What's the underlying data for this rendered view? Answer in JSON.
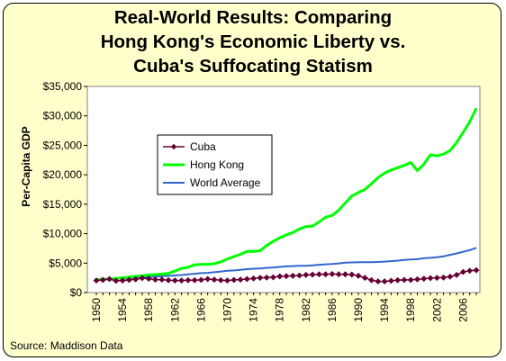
{
  "title_lines": [
    "Real-World Results: Comparing",
    "Hong Kong's Economic Liberty vs.",
    "Cuba's Suffocating Statism"
  ],
  "source": "Source: Maddison Data",
  "chart_data": {
    "type": "line",
    "ylabel": "Per-Capita GDP",
    "xlabel": "",
    "ylim": [
      0,
      35000
    ],
    "y_ticks": [
      0,
      5000,
      10000,
      15000,
      20000,
      25000,
      30000,
      35000
    ],
    "y_tick_labels": [
      "$0",
      "$5,000",
      "$10,000",
      "$15,000",
      "$20,000",
      "$25,000",
      "$30,000",
      "$35,000"
    ],
    "x_tick_labels": [
      "1950",
      "1954",
      "1958",
      "1962",
      "1966",
      "1970",
      "1974",
      "1978",
      "1982",
      "1986",
      "1990",
      "1994",
      "1998",
      "2002",
      "2006"
    ],
    "x": [
      1950,
      1951,
      1952,
      1953,
      1954,
      1955,
      1956,
      1957,
      1958,
      1959,
      1960,
      1961,
      1962,
      1963,
      1964,
      1965,
      1966,
      1967,
      1968,
      1969,
      1970,
      1971,
      1972,
      1973,
      1974,
      1975,
      1976,
      1977,
      1978,
      1979,
      1980,
      1981,
      1982,
      1983,
      1984,
      1985,
      1986,
      1987,
      1988,
      1989,
      1990,
      1991,
      1992,
      1993,
      1994,
      1995,
      1996,
      1997,
      1998,
      1999,
      2000,
      2001,
      2002,
      2003,
      2004,
      2005,
      2006,
      2007,
      2008
    ],
    "legend_position": "left-middle",
    "grid": false,
    "series": [
      {
        "name": "Cuba",
        "color": "#660033",
        "marker": "diamond",
        "values": [
          2050,
          2150,
          2300,
          2000,
          2050,
          2150,
          2250,
          2450,
          2350,
          2200,
          2200,
          2100,
          2050,
          2050,
          2100,
          2100,
          2150,
          2300,
          2200,
          2100,
          2050,
          2150,
          2200,
          2300,
          2400,
          2500,
          2550,
          2600,
          2750,
          2800,
          2850,
          2900,
          3000,
          3050,
          3100,
          3100,
          3150,
          3100,
          3100,
          3050,
          2850,
          2500,
          2100,
          1900,
          1900,
          2000,
          2100,
          2150,
          2150,
          2250,
          2350,
          2450,
          2500,
          2550,
          2700,
          3000,
          3500,
          3700,
          3800
        ]
      },
      {
        "name": "Hong Kong",
        "color": "#00ff00",
        "marker": "none",
        "values": [
          2200,
          2250,
          2300,
          2400,
          2500,
          2650,
          2750,
          2850,
          3000,
          3050,
          3150,
          3250,
          3650,
          4100,
          4300,
          4700,
          4800,
          4800,
          4900,
          5200,
          5700,
          6100,
          6500,
          7000,
          7000,
          7100,
          8000,
          8700,
          9300,
          9800,
          10200,
          10800,
          11200,
          11300,
          12000,
          12800,
          13100,
          14000,
          15200,
          16400,
          17000,
          17500,
          18500,
          19500,
          20300,
          20800,
          21200,
          21600,
          22100,
          20700,
          21800,
          23400,
          23200,
          23500,
          24100,
          25500,
          27200,
          29000,
          31300
        ]
      },
      {
        "name": "World Average",
        "color": "#3366cc",
        "marker": "none",
        "values": [
          2110,
          2200,
          2260,
          2330,
          2380,
          2460,
          2530,
          2580,
          2620,
          2700,
          2800,
          2850,
          2900,
          2980,
          3100,
          3200,
          3300,
          3350,
          3450,
          3570,
          3700,
          3760,
          3850,
          3980,
          4050,
          4080,
          4200,
          4270,
          4350,
          4450,
          4500,
          4550,
          4560,
          4620,
          4720,
          4800,
          4860,
          4950,
          5070,
          5120,
          5150,
          5150,
          5170,
          5190,
          5260,
          5330,
          5430,
          5550,
          5620,
          5670,
          5830,
          5900,
          6000,
          6150,
          6400,
          6650,
          6930,
          7200,
          7600
        ]
      }
    ]
  }
}
